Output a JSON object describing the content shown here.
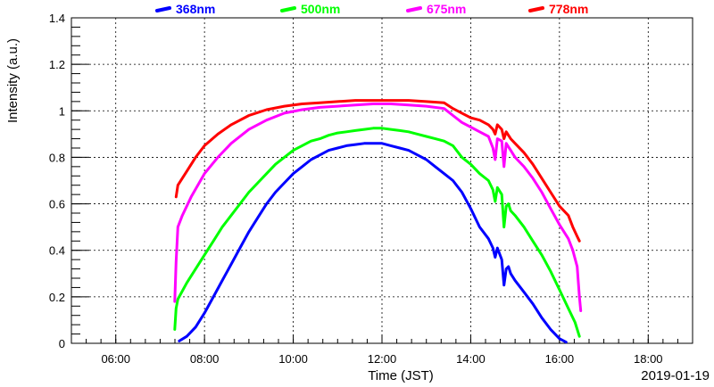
{
  "chart_data": {
    "type": "line",
    "title": "",
    "xlabel": "Time (JST)",
    "ylabel": "Intensity (a.u.)",
    "date_label": "2019-01-19",
    "xlim_hours": [
      5,
      19
    ],
    "ylim": [
      0,
      1.4
    ],
    "grid": true,
    "legend_position": "top",
    "x_ticks": [
      {
        "hour": 6,
        "label": "06:00"
      },
      {
        "hour": 8,
        "label": "08:00"
      },
      {
        "hour": 10,
        "label": "10:00"
      },
      {
        "hour": 12,
        "label": "12:00"
      },
      {
        "hour": 14,
        "label": "14:00"
      },
      {
        "hour": 16,
        "label": "16:00"
      },
      {
        "hour": 18,
        "label": "18:00"
      }
    ],
    "y_ticks": [
      {
        "value": 0,
        "label": "0"
      },
      {
        "value": 0.2,
        "label": "0.2"
      },
      {
        "value": 0.4,
        "label": "0.4"
      },
      {
        "value": 0.6,
        "label": "0.6"
      },
      {
        "value": 0.8,
        "label": "0.8"
      },
      {
        "value": 1.0,
        "label": "1"
      },
      {
        "value": 1.2,
        "label": "1.2"
      },
      {
        "value": 1.4,
        "label": "1.4"
      }
    ],
    "series": [
      {
        "name": "368nm",
        "color": "#0000ff",
        "points": [
          [
            7.43,
            0.01
          ],
          [
            7.6,
            0.03
          ],
          [
            7.8,
            0.07
          ],
          [
            8.0,
            0.13
          ],
          [
            8.2,
            0.2
          ],
          [
            8.4,
            0.27
          ],
          [
            8.6,
            0.34
          ],
          [
            8.8,
            0.41
          ],
          [
            9.0,
            0.48
          ],
          [
            9.2,
            0.54
          ],
          [
            9.4,
            0.6
          ],
          [
            9.6,
            0.65
          ],
          [
            9.8,
            0.69
          ],
          [
            10.0,
            0.73
          ],
          [
            10.2,
            0.76
          ],
          [
            10.4,
            0.79
          ],
          [
            10.6,
            0.81
          ],
          [
            10.8,
            0.83
          ],
          [
            11.0,
            0.84
          ],
          [
            11.2,
            0.85
          ],
          [
            11.4,
            0.855
          ],
          [
            11.6,
            0.86
          ],
          [
            11.8,
            0.86
          ],
          [
            12.0,
            0.86
          ],
          [
            12.2,
            0.85
          ],
          [
            12.4,
            0.84
          ],
          [
            12.6,
            0.83
          ],
          [
            12.8,
            0.81
          ],
          [
            13.0,
            0.79
          ],
          [
            13.2,
            0.76
          ],
          [
            13.4,
            0.73
          ],
          [
            13.6,
            0.7
          ],
          [
            13.8,
            0.65
          ],
          [
            14.0,
            0.58
          ],
          [
            14.2,
            0.5
          ],
          [
            14.4,
            0.45
          ],
          [
            14.5,
            0.41
          ],
          [
            14.55,
            0.37
          ],
          [
            14.6,
            0.41
          ],
          [
            14.7,
            0.36
          ],
          [
            14.75,
            0.25
          ],
          [
            14.8,
            0.32
          ],
          [
            14.85,
            0.33
          ],
          [
            14.9,
            0.3
          ],
          [
            15.0,
            0.27
          ],
          [
            15.2,
            0.22
          ],
          [
            15.4,
            0.17
          ],
          [
            15.6,
            0.11
          ],
          [
            15.8,
            0.06
          ],
          [
            16.0,
            0.02
          ],
          [
            16.15,
            0.005
          ]
        ]
      },
      {
        "name": "500nm",
        "color": "#00ff00",
        "points": [
          [
            7.33,
            0.06
          ],
          [
            7.36,
            0.15
          ],
          [
            7.4,
            0.19
          ],
          [
            7.6,
            0.26
          ],
          [
            7.8,
            0.32
          ],
          [
            8.0,
            0.38
          ],
          [
            8.2,
            0.44
          ],
          [
            8.4,
            0.5
          ],
          [
            8.6,
            0.55
          ],
          [
            8.8,
            0.6
          ],
          [
            9.0,
            0.65
          ],
          [
            9.2,
            0.69
          ],
          [
            9.4,
            0.73
          ],
          [
            9.6,
            0.77
          ],
          [
            9.8,
            0.8
          ],
          [
            10.0,
            0.83
          ],
          [
            10.2,
            0.85
          ],
          [
            10.4,
            0.87
          ],
          [
            10.6,
            0.88
          ],
          [
            10.8,
            0.895
          ],
          [
            11.0,
            0.905
          ],
          [
            11.2,
            0.91
          ],
          [
            11.4,
            0.915
          ],
          [
            11.6,
            0.92
          ],
          [
            11.8,
            0.925
          ],
          [
            12.0,
            0.925
          ],
          [
            12.2,
            0.92
          ],
          [
            12.4,
            0.915
          ],
          [
            12.6,
            0.91
          ],
          [
            12.8,
            0.9
          ],
          [
            13.0,
            0.89
          ],
          [
            13.2,
            0.88
          ],
          [
            13.4,
            0.87
          ],
          [
            13.6,
            0.85
          ],
          [
            13.8,
            0.8
          ],
          [
            14.0,
            0.77
          ],
          [
            14.2,
            0.73
          ],
          [
            14.4,
            0.7
          ],
          [
            14.5,
            0.66
          ],
          [
            14.55,
            0.61
          ],
          [
            14.6,
            0.67
          ],
          [
            14.7,
            0.64
          ],
          [
            14.75,
            0.5
          ],
          [
            14.8,
            0.59
          ],
          [
            14.85,
            0.6
          ],
          [
            14.9,
            0.57
          ],
          [
            15.0,
            0.55
          ],
          [
            15.2,
            0.5
          ],
          [
            15.4,
            0.44
          ],
          [
            15.6,
            0.38
          ],
          [
            15.8,
            0.31
          ],
          [
            16.0,
            0.23
          ],
          [
            16.2,
            0.15
          ],
          [
            16.35,
            0.09
          ],
          [
            16.45,
            0.03
          ]
        ]
      },
      {
        "name": "675nm",
        "color": "#ff00ff",
        "points": [
          [
            7.33,
            0.18
          ],
          [
            7.36,
            0.35
          ],
          [
            7.4,
            0.5
          ],
          [
            7.5,
            0.55
          ],
          [
            7.7,
            0.63
          ],
          [
            8.0,
            0.73
          ],
          [
            8.3,
            0.8
          ],
          [
            8.6,
            0.86
          ],
          [
            9.0,
            0.92
          ],
          [
            9.4,
            0.96
          ],
          [
            9.8,
            0.99
          ],
          [
            10.2,
            1.005
          ],
          [
            10.6,
            1.015
          ],
          [
            11.0,
            1.02
          ],
          [
            11.4,
            1.025
          ],
          [
            11.8,
            1.03
          ],
          [
            12.2,
            1.03
          ],
          [
            12.6,
            1.025
          ],
          [
            13.0,
            1.02
          ],
          [
            13.4,
            1.01
          ],
          [
            13.6,
            0.98
          ],
          [
            13.8,
            0.95
          ],
          [
            14.0,
            0.93
          ],
          [
            14.2,
            0.91
          ],
          [
            14.4,
            0.89
          ],
          [
            14.5,
            0.84
          ],
          [
            14.55,
            0.79
          ],
          [
            14.6,
            0.88
          ],
          [
            14.7,
            0.87
          ],
          [
            14.75,
            0.76
          ],
          [
            14.8,
            0.86
          ],
          [
            14.9,
            0.83
          ],
          [
            15.0,
            0.8
          ],
          [
            15.2,
            0.76
          ],
          [
            15.4,
            0.71
          ],
          [
            15.6,
            0.65
          ],
          [
            15.8,
            0.58
          ],
          [
            16.0,
            0.51
          ],
          [
            16.2,
            0.45
          ],
          [
            16.3,
            0.4
          ],
          [
            16.4,
            0.33
          ],
          [
            16.45,
            0.2
          ],
          [
            16.48,
            0.14
          ]
        ]
      },
      {
        "name": "778nm",
        "color": "#ff0000",
        "points": [
          [
            7.36,
            0.63
          ],
          [
            7.4,
            0.68
          ],
          [
            7.6,
            0.74
          ],
          [
            7.8,
            0.8
          ],
          [
            8.0,
            0.85
          ],
          [
            8.3,
            0.9
          ],
          [
            8.6,
            0.94
          ],
          [
            9.0,
            0.98
          ],
          [
            9.4,
            1.005
          ],
          [
            9.8,
            1.02
          ],
          [
            10.2,
            1.03
          ],
          [
            10.6,
            1.035
          ],
          [
            11.0,
            1.04
          ],
          [
            11.4,
            1.045
          ],
          [
            11.8,
            1.045
          ],
          [
            12.2,
            1.045
          ],
          [
            12.6,
            1.045
          ],
          [
            13.0,
            1.04
          ],
          [
            13.4,
            1.035
          ],
          [
            13.6,
            1.01
          ],
          [
            13.8,
            0.99
          ],
          [
            14.0,
            0.97
          ],
          [
            14.2,
            0.96
          ],
          [
            14.4,
            0.94
          ],
          [
            14.5,
            0.92
          ],
          [
            14.55,
            0.9
          ],
          [
            14.6,
            0.94
          ],
          [
            14.7,
            0.92
          ],
          [
            14.75,
            0.88
          ],
          [
            14.8,
            0.91
          ],
          [
            14.9,
            0.88
          ],
          [
            15.0,
            0.86
          ],
          [
            15.2,
            0.82
          ],
          [
            15.4,
            0.77
          ],
          [
            15.6,
            0.71
          ],
          [
            15.8,
            0.65
          ],
          [
            16.0,
            0.59
          ],
          [
            16.2,
            0.55
          ],
          [
            16.3,
            0.5
          ],
          [
            16.4,
            0.46
          ],
          [
            16.45,
            0.44
          ]
        ]
      }
    ]
  }
}
